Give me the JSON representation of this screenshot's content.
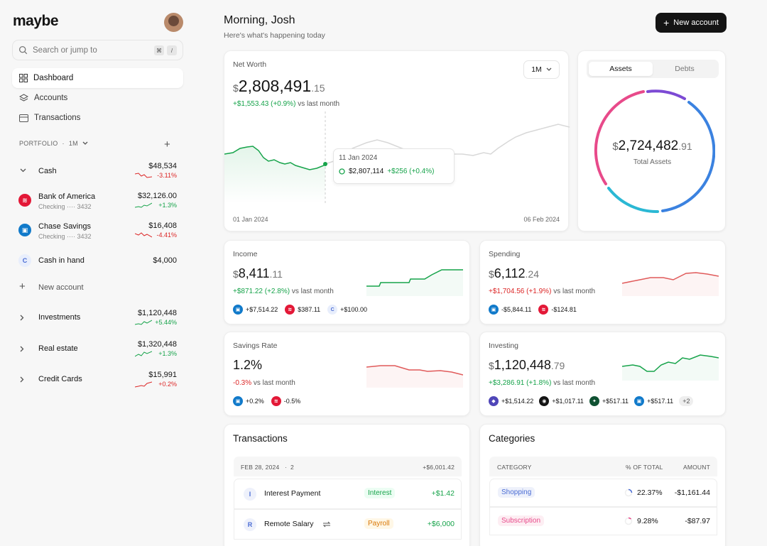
{
  "app": {
    "logo": "maybe"
  },
  "search": {
    "placeholder": "Search or jump to",
    "key1": "⌘",
    "key2": "/"
  },
  "nav": [
    {
      "label": "Dashboard",
      "icon": "grid-icon",
      "active": true
    },
    {
      "label": "Accounts",
      "icon": "layers-icon"
    },
    {
      "label": "Transactions",
      "icon": "credit-card-icon"
    }
  ],
  "portfolio": {
    "label": "PORTFOLIO",
    "sep": "·",
    "period": "1M"
  },
  "accounts": {
    "cash": {
      "name": "Cash",
      "amount": "$48,534",
      "change": "-3.11%"
    },
    "boa": {
      "name": "Bank of America",
      "sub": "Checking ···· 3432",
      "amount": "$32,126.00",
      "change": "+1.3%"
    },
    "chase": {
      "name": "Chase Savings",
      "sub": "Checking ···· 3432",
      "amount": "$16,408",
      "change": "-4.41%"
    },
    "cash_hand": {
      "name": "Cash in hand",
      "amount": "$4,000",
      "initial": "C"
    },
    "new_account": "New account",
    "investments": {
      "name": "Investments",
      "amount": "$1,120,448",
      "change": "+5.44%"
    },
    "real_estate": {
      "name": "Real estate",
      "amount": "$1,320,448",
      "change": "+1.3%"
    },
    "credit_cards": {
      "name": "Credit Cards",
      "amount": "$15,991",
      "change": "+0.2%"
    }
  },
  "header": {
    "greeting": "Morning, Josh",
    "subtitle": "Here's what's happening today",
    "new_account_btn": "New account"
  },
  "net_worth": {
    "label": "Net Worth",
    "currency": "$",
    "whole": "2,808,491",
    "decimal": ".15",
    "change": "+$1,553.43",
    "change_pct": "(+0.9%)",
    "vs": "vs last month",
    "period": "1M",
    "start_date": "01 Jan 2024",
    "end_date": "06 Feb 2024",
    "tooltip": {
      "date": "11 Jan 2024",
      "value": "$2,807,114",
      "change": "+$256 (+0.4%)"
    }
  },
  "assets": {
    "tab_assets": "Assets",
    "tab_debts": "Debts",
    "currency": "$",
    "whole": "2,724,482",
    "decimal": ".91",
    "label": "Total Assets"
  },
  "income": {
    "label": "Income",
    "currency": "$",
    "whole": "8,411",
    "decimal": ".11",
    "change": "+$871.22 (+2.8%)",
    "vs": "vs last month",
    "items": [
      {
        "value": "+$7,514.22"
      },
      {
        "value": "$387.11"
      },
      {
        "value": "+$100.00",
        "initial": "C"
      }
    ]
  },
  "spending": {
    "label": "Spending",
    "currency": "$",
    "whole": "6,112",
    "decimal": ".24",
    "change": "+$1,704.56 (+1.9%)",
    "vs": "vs last month",
    "items": [
      {
        "value": "-$5,844.11"
      },
      {
        "value": "-$124.81"
      }
    ]
  },
  "savings": {
    "label": "Savings Rate",
    "value": "1.2%",
    "change": "-0.3%",
    "vs": "vs last month",
    "items": [
      {
        "value": "+0.2%"
      },
      {
        "value": "-0.5%"
      }
    ]
  },
  "investing": {
    "label": "Investing",
    "currency": "$",
    "whole": "1,120,448",
    "decimal": ".79",
    "change": "+$3,286.91 (+1.8%)",
    "vs": "vs last month",
    "items": [
      {
        "value": "+$1,514.22"
      },
      {
        "value": "+$1,017.11"
      },
      {
        "value": "+$517.11"
      },
      {
        "value": "+$517.11"
      }
    ],
    "more": "+2"
  },
  "transactions": {
    "title": "Transactions",
    "date": "FEB 28, 2024",
    "sep": "·",
    "count": "2",
    "total": "+$6,001.42",
    "rows": [
      {
        "initial": "I",
        "name": "Interest Payment",
        "category": "Interest",
        "amount": "+$1.42"
      },
      {
        "initial": "R",
        "name": "Remote Salary",
        "category": "Payroll",
        "amount": "+$6,000"
      }
    ]
  },
  "categories": {
    "title": "Categories",
    "col_category": "CATEGORY",
    "col_pct": "% OF TOTAL",
    "col_amount": "AMOUNT",
    "rows": [
      {
        "name": "Shopping",
        "pct": "22.37%",
        "amount": "-$1,161.44"
      },
      {
        "name": "Subscription",
        "pct": "9.28%",
        "amount": "-$87.97"
      }
    ]
  },
  "colors": {
    "positive": "#16a34a",
    "negative": "#dc2626",
    "boa": "#e31837",
    "chase": "#117aca"
  }
}
